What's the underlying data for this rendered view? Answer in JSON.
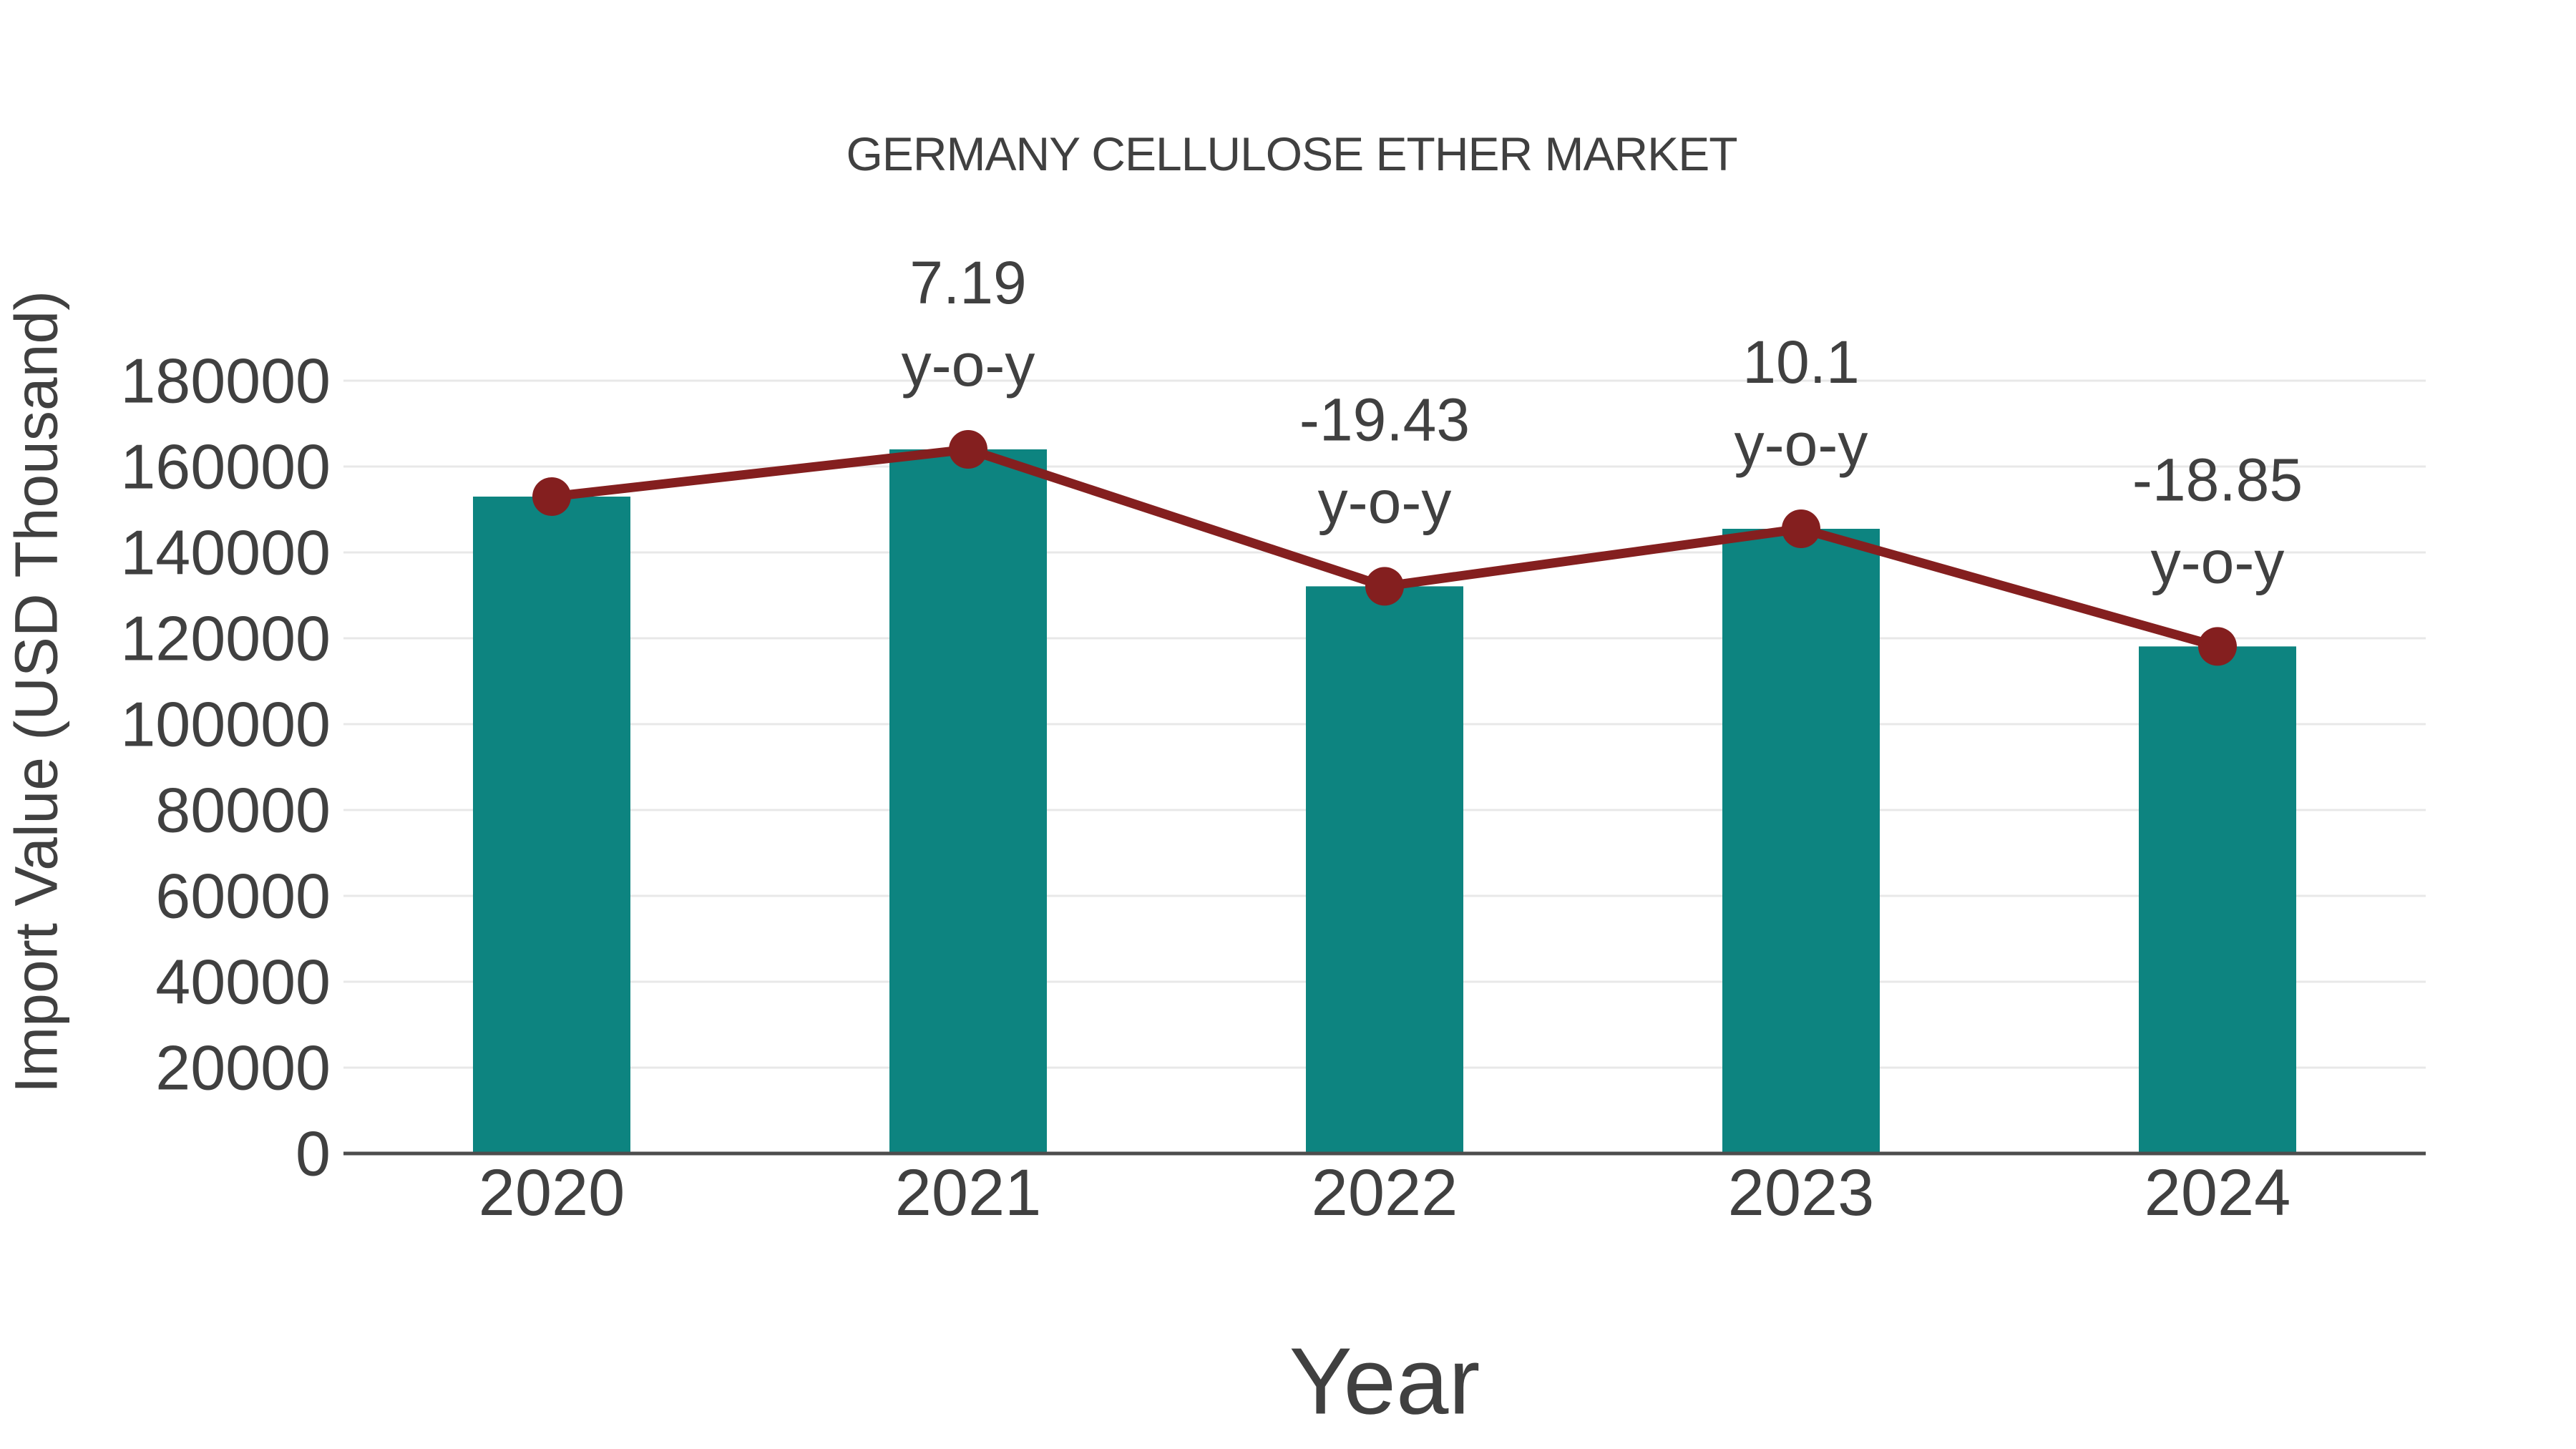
{
  "chart_data": {
    "type": "bar+line",
    "title": "GERMANY CELLULOSE ETHER MARKET",
    "xlabel": "Year",
    "ylabel": "Import Value (USD Thousand)",
    "categories": [
      "2020",
      "2021",
      "2022",
      "2023",
      "2024"
    ],
    "series": [
      {
        "name": "Import Value (USD Thousand)",
        "type": "bar",
        "color": "#0d8480",
        "values": [
          153000,
          164000,
          132100,
          145500,
          118100
        ]
      },
      {
        "name": "y-o-y",
        "type": "line",
        "color": "#841f1f",
        "values": [
          null,
          7.19,
          -19.43,
          10.1,
          -18.85
        ],
        "labels": [
          "",
          "7.19",
          "-19.43",
          "10.1",
          "-18.85"
        ],
        "label_suffix": "y-o-y"
      }
    ],
    "ylim": [
      0,
      180000
    ],
    "yticks": [
      0,
      20000,
      40000,
      60000,
      80000,
      100000,
      120000,
      140000,
      160000,
      180000
    ],
    "grid": true,
    "legend_position": "none"
  },
  "colors": {
    "background": "#ffffff",
    "bar": "#0d8480",
    "line": "#841f1f",
    "text": "#404040",
    "gridline": "#e8e8e8",
    "axis_line": "#4d4d4d"
  }
}
